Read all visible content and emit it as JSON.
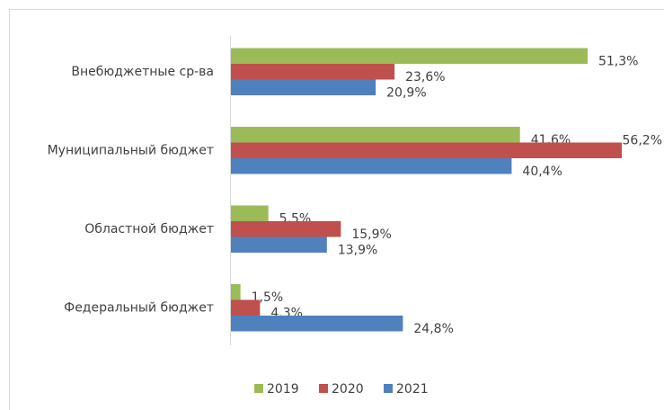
{
  "chart_data": {
    "type": "bar",
    "orientation": "horizontal",
    "categories": [
      "Внебюджетные ср-ва",
      "Муниципальный бюджет",
      "Областной бюджет",
      "Федеральный бюджет"
    ],
    "series": [
      {
        "name": "2019",
        "color": "#9bbb59",
        "values": [
          51.3,
          41.6,
          5.5,
          1.5
        ],
        "value_labels": [
          "51,3%",
          "41,6%",
          "5,5%",
          "1,5%"
        ]
      },
      {
        "name": "2020",
        "color": "#c0504d",
        "values": [
          23.6,
          56.2,
          15.9,
          4.3
        ],
        "value_labels": [
          "23,6%",
          "56,2%",
          "15,9%",
          "4,3%"
        ]
      },
      {
        "name": "2021",
        "color": "#4f81bd",
        "values": [
          20.9,
          40.4,
          13.9,
          24.8
        ],
        "value_labels": [
          "20,9%",
          "40,4%",
          "13,9%",
          "24,8%"
        ]
      }
    ],
    "legend": "bottom"
  }
}
